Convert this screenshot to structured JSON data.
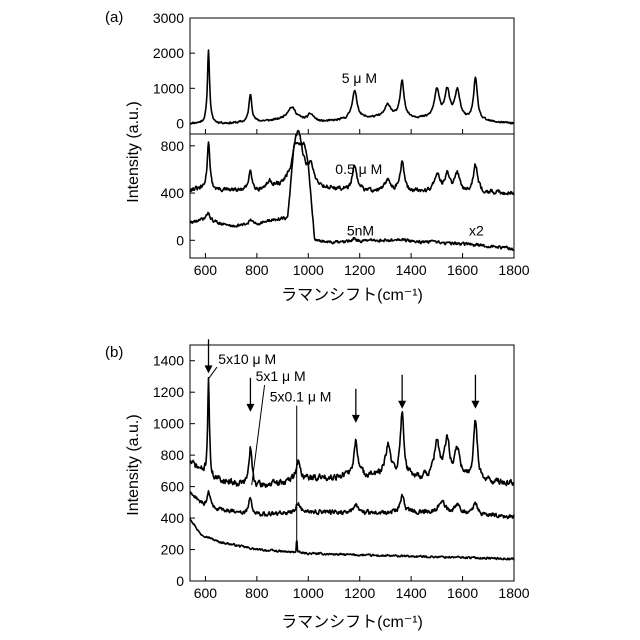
{
  "chart_data": [
    {
      "panel": "(a)",
      "type": "line",
      "xlabel": "ラマンシフト(cm⁻¹)",
      "ylabel": "Intensity (a.u.)",
      "xlim": [
        540,
        1800
      ],
      "xticks": [
        600,
        800,
        1000,
        1200,
        1400,
        1600,
        1800
      ],
      "subplots": [
        {
          "ylim": [
            -300,
            3000
          ],
          "yticks": [
            0,
            1000,
            2000,
            3000
          ],
          "series": [
            {
              "name": "5 μ M",
              "offset": 0,
              "scale": 1,
              "baseline": [
                [
                  540,
                  0
                ],
                [
                  700,
                  0
                ],
                [
                  900,
                  80
                ],
                [
                  1050,
                  30
                ],
                [
                  1300,
                  180
                ],
                [
                  1800,
                  0
                ]
              ],
              "peaks": [
                [
                  612,
                  2100,
                  5
                ],
                [
                  775,
                  800,
                  7
                ],
                [
                  935,
                  380,
                  22
                ],
                [
                  1010,
                  200,
                  15
                ],
                [
                  1180,
                  800,
                  12
                ],
                [
                  1310,
                  340,
                  14
                ],
                [
                  1365,
                  1050,
                  9
                ],
                [
                  1500,
                  800,
                  12
                ],
                [
                  1540,
                  780,
                  12
                ],
                [
                  1580,
                  820,
                  12
                ],
                [
                  1650,
                  1200,
                  9
                ]
              ],
              "noise": 45
            }
          ]
        },
        {
          "ylim": [
            -150,
            900
          ],
          "yticks": [
            0,
            400,
            800
          ],
          "series": [
            {
              "name": "0.5 μ M",
              "offset": 0,
              "scale": 1,
              "baseline": [
                [
                  540,
                  430
                ],
                [
                  800,
                  410
                ],
                [
                  900,
                  430
                ],
                [
                  1000,
                  430
                ],
                [
                  1300,
                  410
                ],
                [
                  1800,
                  400
                ]
              ],
              "peaks": [
                [
                  612,
                  420,
                  6
                ],
                [
                  775,
                  190,
                  7
                ],
                [
                  850,
                  60,
                  15
                ],
                [
                  960,
                  480,
                  24
                ],
                [
                  1010,
                  140,
                  14
                ],
                [
                  1180,
                  200,
                  10
                ],
                [
                  1310,
                  90,
                  14
                ],
                [
                  1365,
                  250,
                  9
                ],
                [
                  1500,
                  150,
                  12
                ],
                [
                  1540,
                  140,
                  12
                ],
                [
                  1580,
                  150,
                  12
                ],
                [
                  1650,
                  230,
                  10
                ]
              ],
              "noise": 28
            },
            {
              "name": "5nM",
              "offset": 0,
              "scale": 1,
              "scale_label": "x2",
              "baseline": [
                [
                  540,
                  150
                ],
                [
                  600,
                  175
                ],
                [
                  700,
                  120
                ],
                [
                  800,
                  140
                ],
                [
                  880,
                  180
                ],
                [
                  920,
                  190
                ],
                [
                  945,
                  820
                ],
                [
                  985,
                  820
                ],
                [
                  1000,
                  640
                ],
                [
                  1025,
                  0
                ],
                [
                  1100,
                  -20
                ],
                [
                  1300,
                  0
                ],
                [
                  1600,
                  -30
                ],
                [
                  1800,
                  -70
                ]
              ],
              "peaks": [
                [
                  612,
                  70,
                  7
                ],
                [
                  775,
                  40,
                  7
                ],
                [
                  1180,
                  30,
                  10
                ],
                [
                  1365,
                  20,
                  10
                ]
              ],
              "noise": 20
            }
          ]
        }
      ]
    },
    {
      "panel": "(b)",
      "type": "line",
      "xlabel": "ラマンシフト(cm⁻¹)",
      "ylabel": "Intensity (a.u.)",
      "xlim": [
        540,
        1800
      ],
      "ylim": [
        0,
        1500
      ],
      "xticks": [
        600,
        800,
        1000,
        1200,
        1400,
        1600,
        1800
      ],
      "yticks": [
        0,
        200,
        400,
        600,
        800,
        1000,
        1200,
        1400
      ],
      "arrows_at": [
        612,
        775,
        1185,
        1365,
        1650
      ],
      "series": [
        {
          "name": "5x10 μ M",
          "baseline": [
            [
              540,
              760
            ],
            [
              620,
              650
            ],
            [
              800,
              600
            ],
            [
              1000,
              650
            ],
            [
              1200,
              670
            ],
            [
              1400,
              660
            ],
            [
              1800,
              620
            ]
          ],
          "peaks": [
            [
              612,
              640,
              4
            ],
            [
              775,
              240,
              7
            ],
            [
              960,
              120,
              10
            ],
            [
              1185,
              220,
              9
            ],
            [
              1310,
              190,
              12
            ],
            [
              1365,
              410,
              8
            ],
            [
              1500,
              220,
              12
            ],
            [
              1540,
              230,
              12
            ],
            [
              1580,
              180,
              12
            ],
            [
              1650,
              380,
              9
            ]
          ],
          "noise": 32
        },
        {
          "name": "5x1 μ M",
          "baseline": [
            [
              540,
              560
            ],
            [
              600,
              470
            ],
            [
              800,
              420
            ],
            [
              1000,
              440
            ],
            [
              1200,
              430
            ],
            [
              1400,
              440
            ],
            [
              1800,
              410
            ]
          ],
          "peaks": [
            [
              612,
              110,
              7
            ],
            [
              775,
              100,
              8
            ],
            [
              960,
              60,
              10
            ],
            [
              1185,
              50,
              10
            ],
            [
              1365,
              100,
              9
            ],
            [
              1520,
              80,
              14
            ],
            [
              1580,
              60,
              12
            ],
            [
              1650,
              70,
              10
            ]
          ],
          "noise": 22
        },
        {
          "name": "5x0.1 μ M",
          "baseline": [
            [
              540,
              400
            ],
            [
              580,
              300
            ],
            [
              650,
              250
            ],
            [
              800,
              200
            ],
            [
              1000,
              175
            ],
            [
              1300,
              160
            ],
            [
              1600,
              150
            ],
            [
              1800,
              140
            ]
          ],
          "peaks": [
            [
              955,
              120,
              1.2
            ]
          ],
          "noise": 10
        }
      ]
    }
  ]
}
